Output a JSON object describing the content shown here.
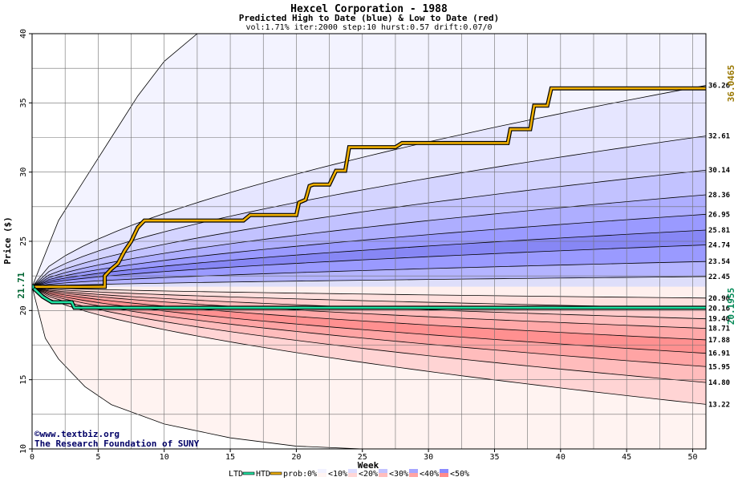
{
  "chart_data": {
    "type": "area",
    "title": "Hexcel Corporation - 1988",
    "subtitle": "Predicted High to Date (blue) &  Low to Date (red)",
    "params": "vol:1.71% iter:2000 step:10 hurst:0.57 drift:0.07/0",
    "xlabel": "Week",
    "ylabel": "Price ($)",
    "xlim": [
      0,
      51
    ],
    "ylim": [
      10,
      40
    ],
    "x_ticks": [
      0,
      5,
      10,
      15,
      20,
      25,
      30,
      35,
      40,
      45,
      50
    ],
    "y_ticks": [
      10,
      15,
      20,
      25,
      30,
      35,
      40
    ],
    "grid": true,
    "start_price": 21.71,
    "start_label": "21.71",
    "high_final_label": "36.0465",
    "low_final_label": "20.1955",
    "right_labels": [
      "36.26",
      "32.61",
      "30.14",
      "28.36",
      "26.95",
      "25.81",
      "24.74",
      "23.54",
      "22.45",
      "20.90",
      "20.16",
      "19.40",
      "18.71",
      "17.88",
      "16.91",
      "15.95",
      "14.80",
      "13.22"
    ],
    "quantile_finals": {
      "high": [
        36.26,
        32.61,
        30.14,
        28.36,
        26.95,
        25.81,
        24.74,
        23.54,
        22.45
      ],
      "low": [
        20.9,
        20.16,
        19.4,
        18.71,
        17.88,
        16.91,
        15.95,
        14.8,
        13.22
      ]
    },
    "envelope": {
      "upper": {
        "x": [
          0,
          2,
          4,
          6,
          8,
          10,
          12.5
        ],
        "y": [
          21.71,
          26.5,
          29.5,
          32.5,
          35.5,
          38.0,
          40.0
        ]
      },
      "lower": {
        "x": [
          0,
          1,
          2,
          4,
          6,
          10,
          15,
          20,
          25
        ],
        "y": [
          21.71,
          18.0,
          16.5,
          14.5,
          13.2,
          11.8,
          10.8,
          10.2,
          10.0
        ]
      }
    },
    "series": [
      {
        "name": "HTD",
        "color": "#f0b000",
        "x": [
          0,
          5.5,
          5.5,
          6,
          6.5,
          7,
          7.5,
          8,
          8.5,
          9,
          16,
          16.5,
          20,
          20.2,
          20.7,
          21,
          21.3,
          22.5,
          23,
          23.7,
          24,
          24.5,
          27.5,
          28,
          36,
          36.2,
          37.7,
          38,
          39,
          39.3,
          51
        ],
        "y": [
          21.71,
          21.71,
          22.5,
          23.0,
          23.4,
          24.3,
          25.0,
          26.0,
          26.5,
          26.5,
          26.5,
          26.9,
          26.9,
          27.8,
          28.0,
          29.0,
          29.1,
          29.1,
          30.1,
          30.1,
          31.8,
          31.8,
          31.8,
          32.1,
          32.1,
          33.1,
          33.1,
          34.8,
          34.8,
          36.05,
          36.05
        ]
      },
      {
        "name": "LTD",
        "color": "#20e0a0",
        "x": [
          0,
          0.8,
          1.5,
          3,
          3.2,
          51
        ],
        "y": [
          21.71,
          21.0,
          20.6,
          20.6,
          20.2,
          20.2
        ]
      }
    ],
    "band_colors": [
      "#fff0ee",
      "#ffd6d6",
      "#ffbdbd",
      "#ffa3a3",
      "#ff8a8a",
      "#f2f2ff",
      "#dcdcff",
      "#c3c3ff",
      "#a6a6ff",
      "#8a8aff"
    ],
    "legend": {
      "ltd": "LTD",
      "htd": "HTD",
      "prob_prefix": "prob:",
      "buckets": [
        "0%",
        "<10%",
        "<20%",
        "<30%",
        "<40%",
        "<50%"
      ],
      "red_swatches": [
        "#fff4f2",
        "#ffd6d6",
        "#ffbdbd",
        "#ffa3a3",
        "#ff8a8a"
      ],
      "blue_swatches": [
        "#f2f2ff",
        "#dcdcff",
        "#c3c3ff",
        "#a6a6ff",
        "#8a8aff"
      ]
    }
  },
  "credit": {
    "line1": "©www.textbiz.org",
    "line2": "The Research Foundation of SUNY"
  }
}
